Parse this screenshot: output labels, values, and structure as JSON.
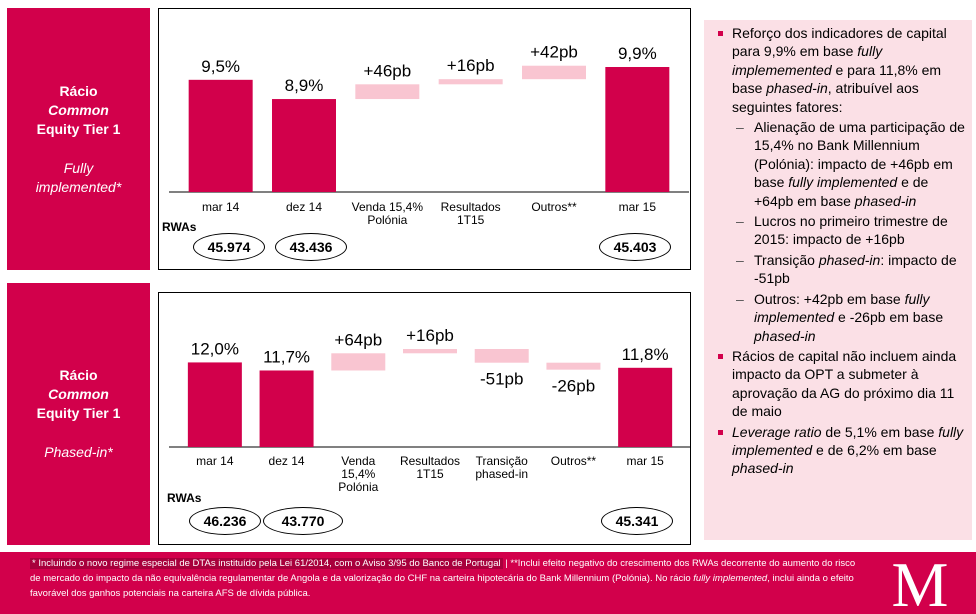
{
  "top": {
    "label_line1": "Rácio",
    "label_line2": "Common",
    "label_line3": "Equity Tier 1",
    "sub_line1": "Fully",
    "sub_line2": "implemented*",
    "rwa_title": "RWAs",
    "rwas": [
      "45.974",
      "43.436",
      "45.403"
    ]
  },
  "bottom": {
    "label_line1": "Rácio",
    "label_line2": "Common",
    "label_line3": "Equity Tier 1",
    "sub_line1": "Phased-in*",
    "rwa_title": "RWAs",
    "rwas": [
      "46.236",
      "43.770",
      "45.341"
    ]
  },
  "chart_data": [
    {
      "type": "bar",
      "title": "Rácio Common Equity Tier 1 Fully implemented*",
      "categories": [
        "mar 14",
        "dez 14",
        "Venda 15,4%\nPolónia",
        "Resultados\n1T15",
        "Outros**",
        "mar 15"
      ],
      "values": [
        9.5,
        8.9,
        0.46,
        0.16,
        0.42,
        9.9
      ],
      "labels": [
        "9,5%",
        "8,9%",
        "+46pb",
        "+16pb",
        "+42pb",
        "9,9%"
      ],
      "kinds": [
        "total",
        "total",
        "delta",
        "delta",
        "delta",
        "total"
      ]
    },
    {
      "type": "bar",
      "title": "Rácio Common Equity Tier 1 Phased-in*",
      "categories": [
        "mar 14",
        "dez 14",
        "Venda\n15,4%\nPolónia",
        "Resultados\n1T15",
        "Transição\nphased-in",
        "Outros**",
        "mar 15"
      ],
      "values": [
        12.0,
        11.7,
        0.64,
        0.16,
        -0.51,
        -0.26,
        11.8
      ],
      "labels": [
        "12,0%",
        "11,7%",
        "+64pb",
        "+16pb",
        "-51pb",
        "-26pb",
        "11,8%"
      ],
      "kinds": [
        "total",
        "total",
        "delta",
        "delta",
        "delta",
        "delta",
        "total"
      ]
    }
  ],
  "colors": {
    "bar": "#d2004b",
    "delta": "#f9c5d1",
    "accent": "#d2004b"
  },
  "bullets": [
    {
      "level": 1,
      "html": "Reforço dos indicadores de capital para 9,9% em base <i>fully implememented</i> e para 11,8% em base <i>phased-in</i>, atribuível aos seguintes fatores:"
    },
    {
      "level": 2,
      "html": "Alienação de uma participação de 15,4% no Bank Millennium (Polónia): impacto de +46pb em base <i>fully implemented</i> e de +64pb em base <i>phased-in</i>"
    },
    {
      "level": 2,
      "html": "Lucros no primeiro trimestre de 2015: impacto de +16pb"
    },
    {
      "level": 2,
      "html": "Transição <i>phased-in</i>: impacto de -51pb"
    },
    {
      "level": 2,
      "html": "Outros: +42pb em base <i>fully implemented</i> e -26pb em base <i>phased-in</i>"
    },
    {
      "level": 1,
      "html": "Rácios de capital não incluem ainda impacto da OPT a submeter à aprovação da AG do próximo dia 11 de maio"
    },
    {
      "level": 1,
      "html": "<i>Leverage ratio</i> de 5,1% em base <i>fully implemented</i> e de 6,2% em base <i>phased-in</i>"
    }
  ],
  "footer": {
    "part1": "* Incluindo o novo regime especial de DTAs instituído pela Lei 61/2014, com o Aviso 3/95 do Banco de Portugal",
    "part2": " | **Inclui efeito negativo do crescimento dos RWAs decorrente do aumento do risco de mercado do impacto da não equivalência regulamentar de Angola e da valorização do CHF na carteira hipotecária do Bank Millennium (Polónia). No rácio ",
    "part3": "fully implemented",
    "part4": ", inclui ainda o efeito favorável dos ganhos potenciais na carteira AFS de dívida pública."
  },
  "logo_letter": "M"
}
